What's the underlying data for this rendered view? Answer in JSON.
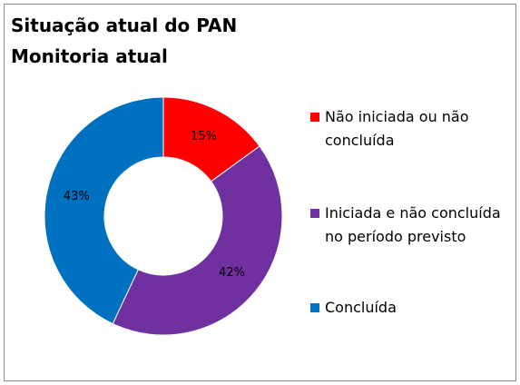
{
  "chart_data": {
    "type": "donut",
    "title": "Situação atual do PAN",
    "subtitle": "Monitoria atual",
    "categories": [
      "Não iniciada ou não concluída",
      "Iniciada e não concluída no período previsto",
      "Concluída"
    ],
    "values": [
      15,
      42,
      43
    ],
    "value_labels": [
      "15%",
      "42%",
      "43%"
    ],
    "colors": [
      "#ff0000",
      "#7030a0",
      "#0070c0"
    ],
    "legend": "right"
  }
}
